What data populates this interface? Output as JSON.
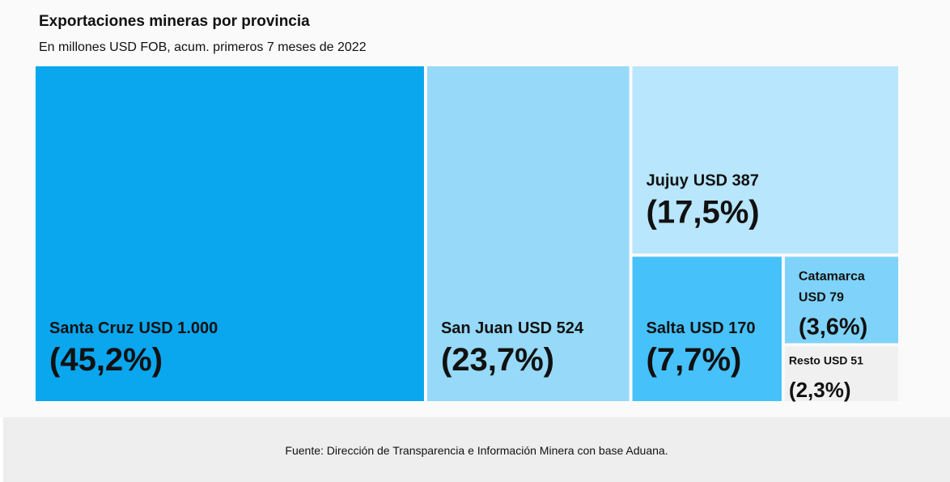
{
  "chart_data": {
    "type": "treemap",
    "title": "Exportaciones mineras por provincia",
    "subtitle": "En millones USD FOB, acum. primeros 7 meses de 2022",
    "source": "Fuente: Dirección de Transparencia e Información Minera con base Aduana.",
    "categories": [
      "Santa Cruz",
      "San Juan",
      "Jujuy",
      "Salta",
      "Catamarca",
      "Resto"
    ],
    "values": [
      1000,
      524,
      387,
      170,
      79,
      51
    ],
    "value_labels": [
      "USD 1.000",
      "USD 524",
      "USD 387",
      "USD 170",
      "USD 79",
      "USD 51"
    ],
    "shares": [
      45.2,
      23.7,
      17.5,
      7.7,
      3.6,
      2.3
    ],
    "share_labels": [
      "(45,2%)",
      "(23,7%)",
      "(17,5%)",
      "(7,7%)",
      "(3,6%)",
      "(2,3%)"
    ],
    "colors": [
      "#0aa6ee",
      "#96d9f8",
      "#b8e6fc",
      "#46c1fa",
      "#7fd3fa",
      "#f0f0f0"
    ]
  }
}
